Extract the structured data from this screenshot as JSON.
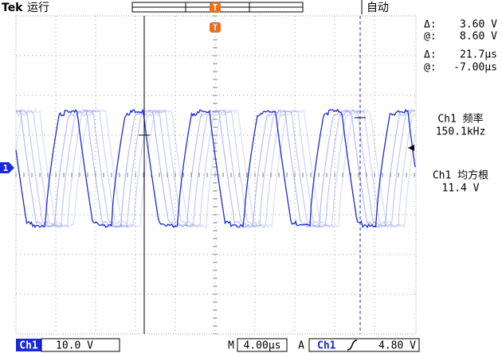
{
  "header": {
    "brand": "Tek",
    "status": "运行",
    "trigger_mode": "自动"
  },
  "cursors": {
    "amplitude": {
      "delta_label": "Δ:",
      "delta": "3.60 V",
      "at_label": "@:",
      "at": "8.60 V"
    },
    "time": {
      "delta_label": "Δ:",
      "delta": "21.7μs",
      "at_label": "@:",
      "at": "-7.00μs"
    }
  },
  "measurements": [
    {
      "label": "Ch1 频率",
      "value": "150.1kHz"
    },
    {
      "label": "Ch1 均方根",
      "value": "11.4 V"
    }
  ],
  "markers": {
    "channel": "1",
    "trigger": "T"
  },
  "footer": {
    "channel": "Ch1",
    "scale": "10.0 V",
    "time_label": "M",
    "time_scale": "4.00μs",
    "trigger_label": "A",
    "trigger_source": "Ch1",
    "trigger_level": "4.80 V"
  }
}
